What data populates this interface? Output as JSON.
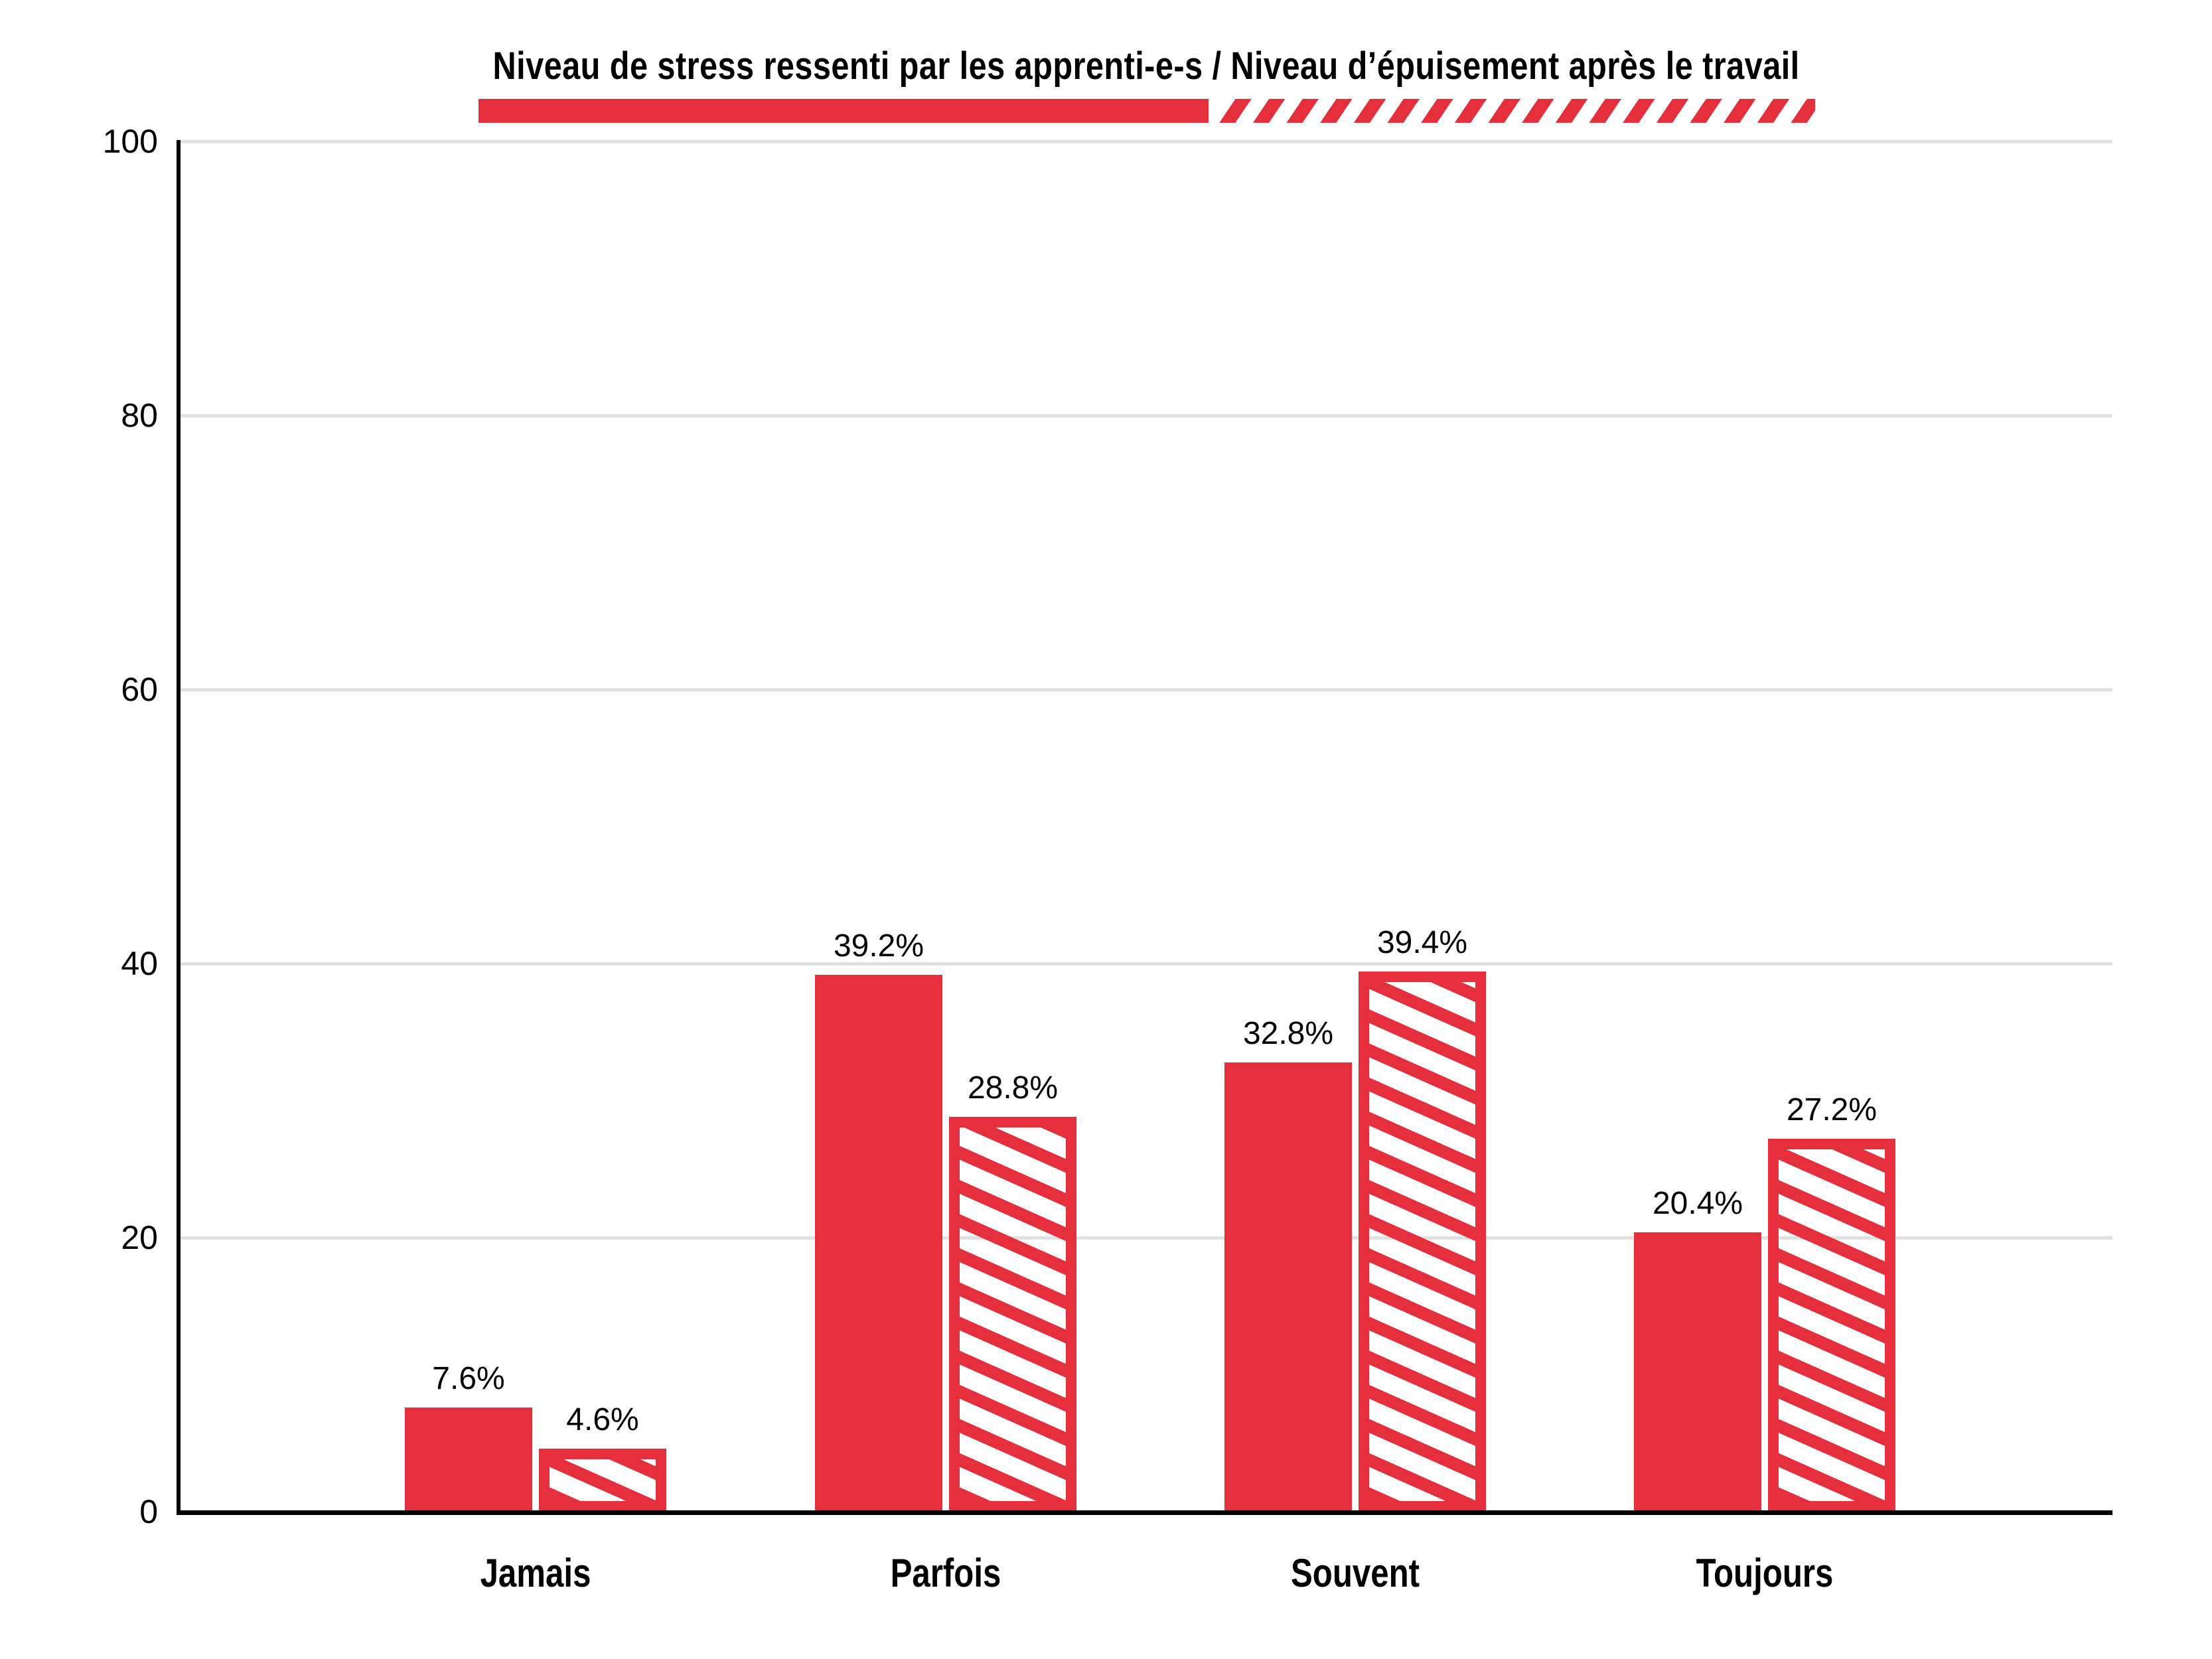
{
  "title": "Niveau de stress ressenti par les apprenti-e-s / Niveau d’épuisement après le travail",
  "chart_data": {
    "type": "bar",
    "title": "Niveau de stress ressenti par les apprenti-e-s / Niveau d’épuisement après le travail",
    "categories": [
      "Jamais",
      "Parfois",
      "Souvent",
      "Toujours"
    ],
    "series": [
      {
        "name": "Niveau de stress ressenti par les apprenti-e-s",
        "pattern": "solid",
        "values": [
          7.6,
          39.2,
          32.8,
          20.4
        ],
        "data_labels": [
          "7.6%",
          "39.2%",
          "32.8%",
          "20.4%"
        ]
      },
      {
        "name": "Niveau d’épuisement après le travail",
        "pattern": "hatched",
        "values": [
          4.6,
          28.8,
          39.4,
          27.2
        ],
        "data_labels": [
          "4.6%",
          "28.8%",
          "39.4%",
          "27.2%"
        ]
      }
    ],
    "xlabel": "",
    "ylabel": "",
    "ylim": [
      0,
      100
    ],
    "yticks": [
      0,
      20,
      40,
      60,
      80,
      100
    ],
    "grid": true,
    "legend_position": "top",
    "colors": {
      "accent_red": "#e62f3c",
      "gridline": "#e0e0e0",
      "axis": "#000000",
      "text": "#000000",
      "background": "#ffffff"
    }
  }
}
